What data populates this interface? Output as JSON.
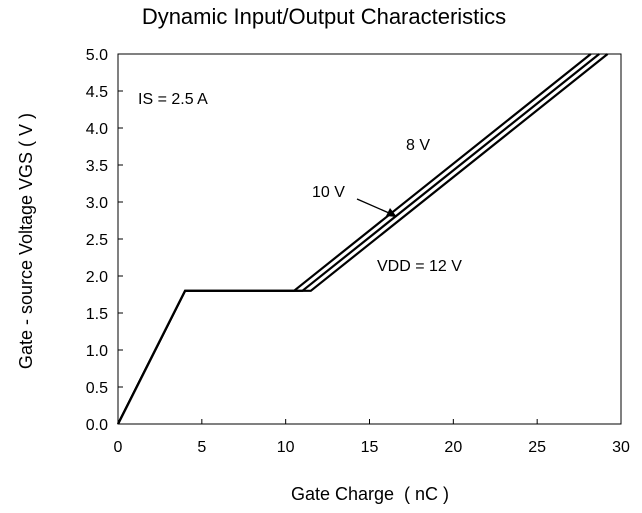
{
  "chart_data": {
    "type": "line",
    "title": "Dynamic Input/Output Characteristics",
    "xlabel": "Gate Charge  ( nC )",
    "ylabel": "Gate - source Voltage VGS ( V )",
    "xlim": [
      0,
      30
    ],
    "ylim": [
      0,
      5.0
    ],
    "xticks": [
      "0",
      "5",
      "10",
      "15",
      "20",
      "25",
      "30"
    ],
    "yticks": [
      "0.0",
      "0.5",
      "1.0",
      "1.5",
      "2.0",
      "2.5",
      "3.0",
      "3.5",
      "4.0",
      "4.5",
      "5.0"
    ],
    "grid": false,
    "line_color": "#000000",
    "series": [
      {
        "name": "8 V",
        "points": [
          [
            0,
            0
          ],
          [
            4,
            1.8
          ],
          [
            10.5,
            1.8
          ],
          [
            28.2,
            5.0
          ]
        ]
      },
      {
        "name": "10 V",
        "points": [
          [
            0,
            0
          ],
          [
            4,
            1.8
          ],
          [
            11.0,
            1.8
          ],
          [
            28.7,
            5.0
          ]
        ]
      },
      {
        "name": "VDD = 12 V",
        "points": [
          [
            0,
            0
          ],
          [
            4,
            1.8
          ],
          [
            11.5,
            1.8
          ],
          [
            29.2,
            5.0
          ]
        ]
      }
    ],
    "annotations": {
      "is_label": "IS = 2.5 A",
      "label_8v": "8 V",
      "label_10v": "10 V",
      "label_12v": "VDD = 12 V"
    }
  }
}
